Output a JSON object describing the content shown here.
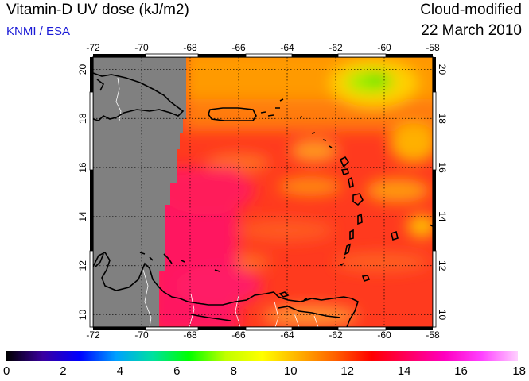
{
  "header": {
    "title": "Vitamin-D UV dose (kJ/m2)",
    "source": "KNMI / ESA",
    "product": "Cloud-modified",
    "date": "22 March 2010"
  },
  "map": {
    "lon_range": [
      -72,
      -58
    ],
    "lat_range": [
      9.5,
      20.5
    ],
    "lon_ticks": [
      "-72",
      "-70",
      "-68",
      "-66",
      "-64",
      "-62",
      "-60",
      "-58"
    ],
    "lat_ticks": [
      "10",
      "12",
      "14",
      "16",
      "18",
      "20"
    ],
    "no_data_color": "#808080",
    "coastline_color": "#000000",
    "border_color": "#ffffff",
    "gridline_style": "dotted"
  },
  "colorbar": {
    "min": 0,
    "max": 18,
    "labels": [
      "0",
      "2",
      "4",
      "6",
      "8",
      "10",
      "12",
      "14",
      "16",
      "18"
    ],
    "colors": [
      "#000000",
      "#3a00a0",
      "#0000ff",
      "#00a0ff",
      "#00e0a0",
      "#00ff00",
      "#c0ff00",
      "#ffff00",
      "#ffb000",
      "#ff6000",
      "#ff0000",
      "#ff0060",
      "#ff00c0",
      "#ff40ff",
      "#ffd0ff"
    ]
  }
}
